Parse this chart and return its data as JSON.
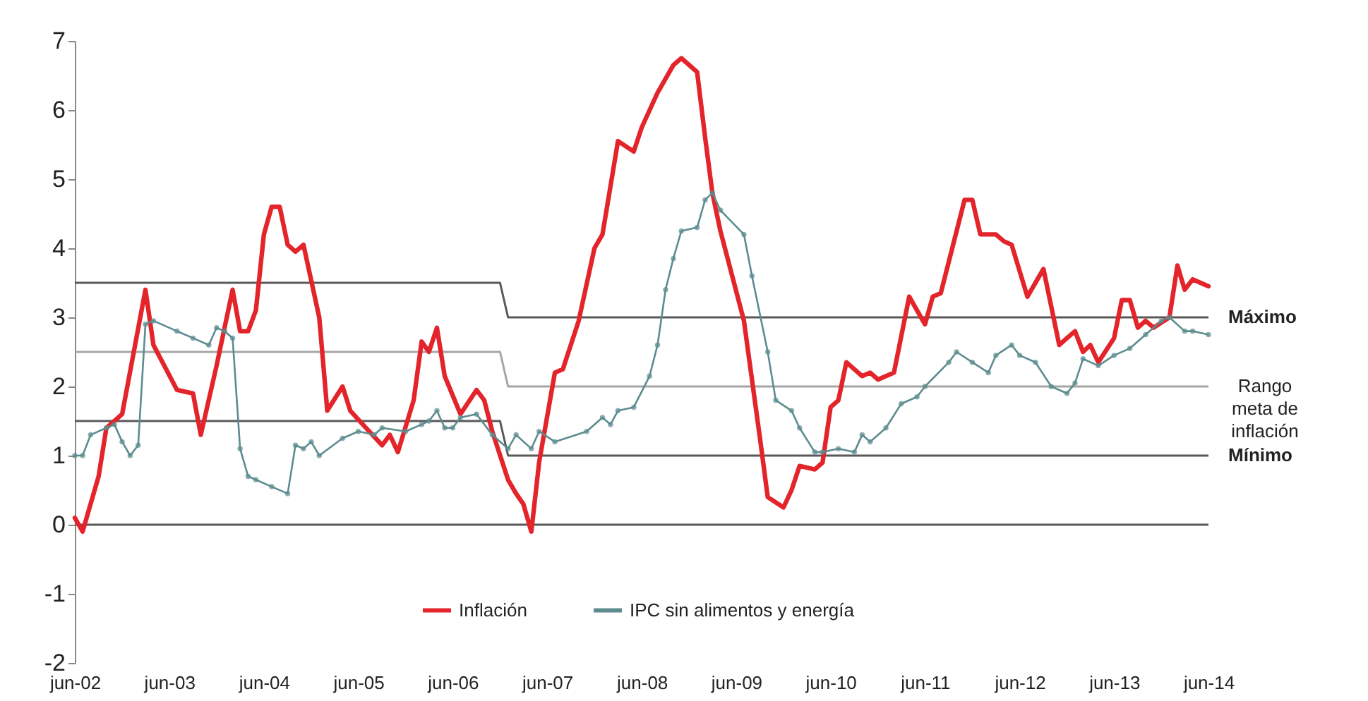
{
  "chart_data": {
    "type": "line",
    "xlim": [
      "2002-06",
      "2014-06"
    ],
    "ylim": [
      -2,
      7
    ],
    "yticks": [
      -2,
      -1,
      0,
      1,
      2,
      3,
      4,
      5,
      6,
      7
    ],
    "xticks": [
      {
        "value": "2002-06",
        "label": "jun-02"
      },
      {
        "value": "2003-06",
        "label": "jun-03"
      },
      {
        "value": "2004-06",
        "label": "jun-04"
      },
      {
        "value": "2005-06",
        "label": "jun-05"
      },
      {
        "value": "2006-06",
        "label": "jun-06"
      },
      {
        "value": "2007-06",
        "label": "jun-07"
      },
      {
        "value": "2008-06",
        "label": "jun-08"
      },
      {
        "value": "2009-06",
        "label": "jun-09"
      },
      {
        "value": "2010-06",
        "label": "jun-10"
      },
      {
        "value": "2011-06",
        "label": "jun-11"
      },
      {
        "value": "2012-06",
        "label": "jun-12"
      },
      {
        "value": "2013-06",
        "label": "jun-13"
      },
      {
        "value": "2014-06",
        "label": "jun-14"
      }
    ],
    "grid": false,
    "legend": "bottom",
    "line_style": "solid",
    "series": [
      {
        "name": "Inflación",
        "color": "#e3242b",
        "x": [
          "2002-06",
          "2002-07",
          "2002-09",
          "2002-10",
          "2002-12",
          "2003-03",
          "2003-04",
          "2003-07",
          "2003-09",
          "2003-10",
          "2003-12",
          "2004-02",
          "2004-03",
          "2004-04",
          "2004-05",
          "2004-06",
          "2004-07",
          "2004-08",
          "2004-09",
          "2004-10",
          "2004-11",
          "2005-01",
          "2005-02",
          "2005-04",
          "2005-05",
          "2005-07",
          "2005-09",
          "2005-10",
          "2005-11",
          "2006-01",
          "2006-02",
          "2006-03",
          "2006-04",
          "2006-05",
          "2006-07",
          "2006-09",
          "2006-10",
          "2006-11",
          "2007-01",
          "2007-02",
          "2007-03",
          "2007-04",
          "2007-05",
          "2007-07",
          "2007-08",
          "2007-10",
          "2007-12",
          "2008-01",
          "2008-03",
          "2008-05",
          "2008-06",
          "2008-08",
          "2008-10",
          "2008-11",
          "2009-01",
          "2009-02",
          "2009-03",
          "2009-04",
          "2009-07",
          "2009-09",
          "2009-10",
          "2009-12",
          "2010-01",
          "2010-02",
          "2010-04",
          "2010-05",
          "2010-06",
          "2010-07",
          "2010-08",
          "2010-10",
          "2010-11",
          "2010-12",
          "2011-02",
          "2011-04",
          "2011-06",
          "2011-07",
          "2011-08",
          "2011-11",
          "2011-12",
          "2012-01",
          "2012-03",
          "2012-04",
          "2012-05",
          "2012-07",
          "2012-09",
          "2012-11",
          "2012-12",
          "2013-01",
          "2013-02",
          "2013-03",
          "2013-04",
          "2013-06",
          "2013-07",
          "2013-08",
          "2013-09",
          "2013-10",
          "2013-11",
          "2014-01",
          "2014-02",
          "2014-03",
          "2014-04",
          "2014-05",
          "2014-06"
        ],
        "values": [
          0.1,
          -0.1,
          0.7,
          1.4,
          1.6,
          3.4,
          2.6,
          1.95,
          1.9,
          1.3,
          2.3,
          3.4,
          2.8,
          2.8,
          3.1,
          4.2,
          4.6,
          4.6,
          4.05,
          3.95,
          4.05,
          3.0,
          1.65,
          2.0,
          1.65,
          1.4,
          1.15,
          1.3,
          1.05,
          1.8,
          2.65,
          2.5,
          2.85,
          2.15,
          1.6,
          1.95,
          1.8,
          1.35,
          0.65,
          0.45,
          0.3,
          -0.1,
          0.9,
          2.2,
          2.25,
          2.95,
          4.0,
          4.2,
          5.55,
          5.4,
          5.75,
          6.25,
          6.65,
          6.75,
          6.55,
          5.6,
          4.8,
          4.25,
          2.95,
          1.25,
          0.4,
          0.25,
          0.5,
          0.85,
          0.8,
          0.9,
          1.7,
          1.8,
          2.35,
          2.15,
          2.2,
          2.1,
          2.2,
          3.3,
          2.9,
          3.3,
          3.35,
          4.7,
          4.7,
          4.2,
          4.2,
          4.1,
          4.05,
          3.3,
          3.7,
          2.6,
          2.7,
          2.8,
          2.5,
          2.6,
          2.35,
          2.7,
          3.25,
          3.25,
          2.85,
          2.95,
          2.85,
          3.0,
          3.75,
          3.4,
          3.55,
          3.5,
          3.45
        ]
      },
      {
        "name": "IPC sin alimentos y energía",
        "color": "#5d8c8f",
        "marker": "circle",
        "x": [
          "2002-06",
          "2002-07",
          "2002-08",
          "2002-10",
          "2002-11",
          "2002-12",
          "2003-01",
          "2003-02",
          "2003-03",
          "2003-04",
          "2003-07",
          "2003-09",
          "2003-11",
          "2003-12",
          "2004-01",
          "2004-02",
          "2004-03",
          "2004-04",
          "2004-05",
          "2004-07",
          "2004-09",
          "2004-10",
          "2004-11",
          "2004-12",
          "2005-01",
          "2005-04",
          "2005-06",
          "2005-08",
          "2005-09",
          "2005-12",
          "2006-02",
          "2006-03",
          "2006-04",
          "2006-05",
          "2006-06",
          "2006-07",
          "2006-09",
          "2006-11",
          "2007-01",
          "2007-02",
          "2007-04",
          "2007-05",
          "2007-07",
          "2007-11",
          "2008-01",
          "2008-02",
          "2008-03",
          "2008-05",
          "2008-07",
          "2008-08",
          "2008-09",
          "2008-10",
          "2008-11",
          "2009-01",
          "2009-02",
          "2009-03",
          "2009-04",
          "2009-07",
          "2009-08",
          "2009-10",
          "2009-11",
          "2010-01",
          "2010-02",
          "2010-04",
          "2010-05",
          "2010-07",
          "2010-09",
          "2010-10",
          "2010-11",
          "2011-01",
          "2011-03",
          "2011-05",
          "2011-06",
          "2011-09",
          "2011-10",
          "2011-12",
          "2012-02",
          "2012-03",
          "2012-05",
          "2012-06",
          "2012-08",
          "2012-10",
          "2012-12",
          "2013-01",
          "2013-02",
          "2013-04",
          "2013-06",
          "2013-08",
          "2013-10",
          "2013-12",
          "2014-01",
          "2014-03",
          "2014-04",
          "2014-06"
        ],
        "values": [
          1.0,
          1.0,
          1.3,
          1.4,
          1.45,
          1.2,
          1.0,
          1.15,
          2.9,
          2.95,
          2.8,
          2.7,
          2.6,
          2.85,
          2.8,
          2.7,
          1.1,
          0.7,
          0.65,
          0.55,
          0.45,
          1.15,
          1.1,
          1.2,
          1.0,
          1.25,
          1.35,
          1.3,
          1.4,
          1.35,
          1.45,
          1.5,
          1.65,
          1.4,
          1.4,
          1.55,
          1.6,
          1.3,
          1.1,
          1.3,
          1.1,
          1.35,
          1.2,
          1.35,
          1.55,
          1.45,
          1.65,
          1.7,
          2.15,
          2.6,
          3.4,
          3.85,
          4.25,
          4.3,
          4.7,
          4.8,
          4.55,
          4.2,
          3.6,
          2.5,
          1.8,
          1.65,
          1.4,
          1.05,
          1.05,
          1.1,
          1.05,
          1.3,
          1.2,
          1.4,
          1.75,
          1.85,
          2.0,
          2.35,
          2.5,
          2.35,
          2.2,
          2.45,
          2.6,
          2.45,
          2.35,
          2.0,
          1.9,
          2.05,
          2.4,
          2.3,
          2.45,
          2.55,
          2.75,
          2.95,
          3.0,
          2.8,
          2.8,
          2.75
        ]
      },
      {
        "color": "#595959",
        "x": [
          "2002-06",
          "2006-12",
          "2007-01",
          "2014-06"
        ],
        "values": [
          3.5,
          3.5,
          3.0,
          3.0
        ]
      },
      {
        "color": "#a6a6a6",
        "x": [
          "2002-06",
          "2006-12",
          "2007-01",
          "2014-06"
        ],
        "values": [
          2.5,
          2.5,
          2.0,
          2.0
        ]
      },
      {
        "color": "#595959",
        "x": [
          "2002-06",
          "2006-12",
          "2007-01",
          "2014-06"
        ],
        "values": [
          1.5,
          1.5,
          1.0,
          1.0
        ]
      }
    ],
    "ref_lines": [
      {
        "axis": "y",
        "value": 0,
        "color": "#595959"
      }
    ],
    "annotations": [
      {
        "text": "Máximo",
        "x": "2014-06",
        "y": 3
      },
      {
        "text": "Rango meta de inflación",
        "x": "2014-06",
        "y": 2
      },
      {
        "text": "Mínimo",
        "x": "2014-06",
        "y": 1
      }
    ]
  }
}
